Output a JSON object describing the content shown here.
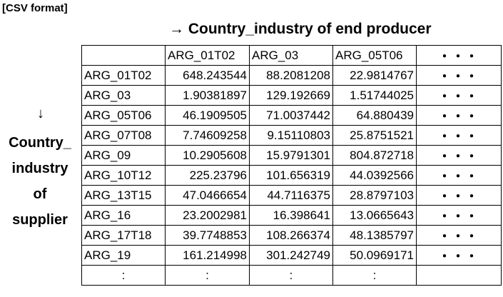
{
  "format_label": "[CSV format]",
  "top_axis_label": "→ Country_industry of end producer",
  "side_arrow": "↓",
  "side_axis_lines": [
    "Country_",
    "industry",
    "of",
    "supplier"
  ],
  "table": {
    "corner": "",
    "columns": [
      "ARG_01T02",
      "ARG_03",
      "ARG_05T06",
      "・・・"
    ],
    "rows": [
      {
        "label": "ARG_01T02",
        "values": [
          "648.243544",
          "88.2081208",
          "22.9814767"
        ],
        "more": "・・・"
      },
      {
        "label": "ARG_03",
        "values": [
          "1.90381897",
          "129.192669",
          "1.51744025"
        ],
        "more": "・・・"
      },
      {
        "label": "ARG_05T06",
        "values": [
          "46.1909505",
          "71.0037442",
          "64.880439"
        ],
        "more": "・・・"
      },
      {
        "label": "ARG_07T08",
        "values": [
          "7.74609258",
          "9.15110803",
          "25.8751521"
        ],
        "more": "・・・"
      },
      {
        "label": "ARG_09",
        "values": [
          "10.2905608",
          "15.9791301",
          "804.872718"
        ],
        "more": "・・・"
      },
      {
        "label": "ARG_10T12",
        "values": [
          "225.23796",
          "101.656319",
          "44.0392566"
        ],
        "more": "・・・"
      },
      {
        "label": "ARG_13T15",
        "values": [
          "47.0466654",
          "44.7116375",
          "28.8797103"
        ],
        "more": "・・・"
      },
      {
        "label": "ARG_16",
        "values": [
          "23.2002981",
          "16.398641",
          "13.0665643"
        ],
        "more": "・・・"
      },
      {
        "label": "ARG_17T18",
        "values": [
          "39.7748853",
          "108.266374",
          "48.1385797"
        ],
        "more": "・・・"
      },
      {
        "label": "ARG_19",
        "values": [
          "161.214998",
          "301.242749",
          "50.0969171"
        ],
        "more": "・・・"
      }
    ],
    "last_row": [
      ":",
      ":",
      ":",
      ":",
      ""
    ]
  }
}
